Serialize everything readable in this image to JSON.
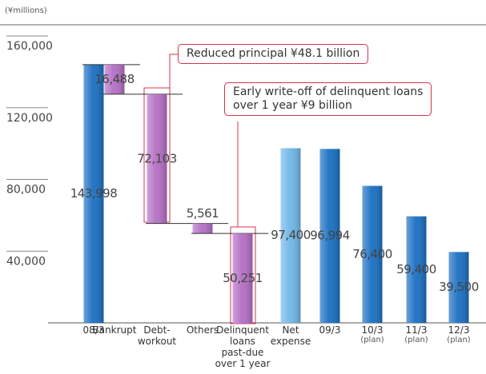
{
  "chart_data": {
    "type": "waterfall",
    "unit_label": "(¥millions)",
    "categories": [
      "08/3",
      "Bankrupt",
      "Debt-\nworkout",
      "Others",
      "Delinquent\nloans\npast-due\nover 1 year",
      "Net\nexpense",
      "09/3",
      "10/3",
      "11/3",
      "12/3"
    ],
    "category_notes": [
      null,
      null,
      null,
      null,
      null,
      null,
      null,
      "(plan)",
      "(plan)",
      "(plan)"
    ],
    "values": [
      143998,
      16488,
      72103,
      5561,
      50251,
      97400,
      96994,
      76400,
      59400,
      39500
    ],
    "value_labels": [
      "143,998",
      "16,488",
      "72,103",
      "5,561",
      "50,251",
      "97,400",
      "96,994",
      "76,400",
      "59,400",
      "39,500"
    ],
    "kinds": [
      "total",
      "decrease",
      "decrease",
      "decrease",
      "decrease",
      "total",
      "total",
      "total",
      "total",
      "total"
    ],
    "colors": [
      "#1a6fc2",
      "#b46ec4",
      "#b46ec4",
      "#b46ec4",
      "#b46ec4",
      "#6fb6e8",
      "#1a6fc2",
      "#1a6fc2",
      "#1a6fc2",
      "#1a6fc2"
    ],
    "ylim": [
      0,
      160000
    ],
    "yticks": [
      {
        "value": 40000,
        "label": "40,000"
      },
      {
        "value": 80000,
        "label": "80,000"
      },
      {
        "value": 120000,
        "label": "120,000"
      },
      {
        "value": 160000,
        "label": "160,000"
      }
    ],
    "annotations": [
      "Reduced principal  ¥48.1 billion",
      "Early write-off of delinquent loans\nover 1 year  ¥9 billion"
    ]
  }
}
